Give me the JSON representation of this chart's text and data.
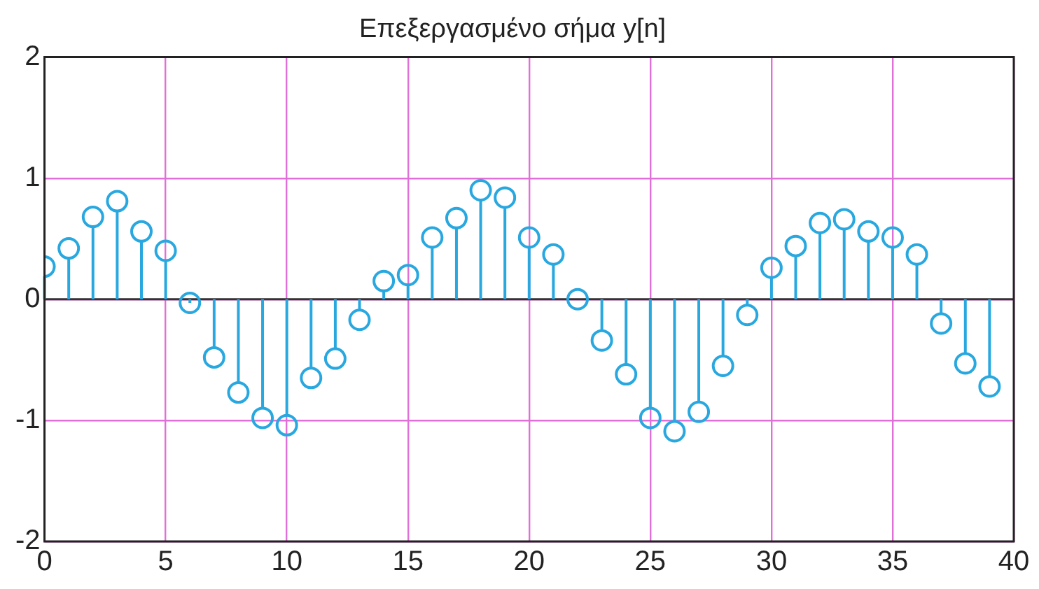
{
  "chart_data": {
    "type": "lollipop",
    "title": "Επεξεργασμένο σήμα y[n]",
    "x": [
      0,
      1,
      2,
      3,
      4,
      5,
      6,
      7,
      8,
      9,
      10,
      11,
      12,
      13,
      14,
      15,
      16,
      17,
      18,
      19,
      20,
      21,
      22,
      23,
      24,
      25,
      26,
      27,
      28,
      29,
      30,
      31,
      32,
      33,
      34,
      35,
      36,
      37,
      38,
      39
    ],
    "values": [
      0.27,
      0.42,
      0.68,
      0.81,
      0.56,
      0.4,
      -0.03,
      -0.48,
      -0.77,
      -0.98,
      -1.04,
      -0.65,
      -0.49,
      -0.17,
      0.15,
      0.2,
      0.51,
      0.67,
      0.9,
      0.84,
      0.51,
      0.37,
      0,
      -0.34,
      -0.62,
      -0.98,
      -1.09,
      -0.93,
      -0.55,
      -0.13,
      0.26,
      0.44,
      0.63,
      0.66,
      0.56,
      0.51,
      0.37,
      -0.2,
      -0.53,
      -0.72
    ],
    "color": "#29a8e0",
    "marker": "circle",
    "xlim": [
      0,
      40
    ],
    "xticks": [
      0,
      5,
      10,
      15,
      20,
      25,
      30,
      35,
      40
    ],
    "ylim": [
      -2,
      2
    ],
    "yticks": [
      -2,
      -1,
      0,
      1,
      2
    ],
    "grid": true
  }
}
